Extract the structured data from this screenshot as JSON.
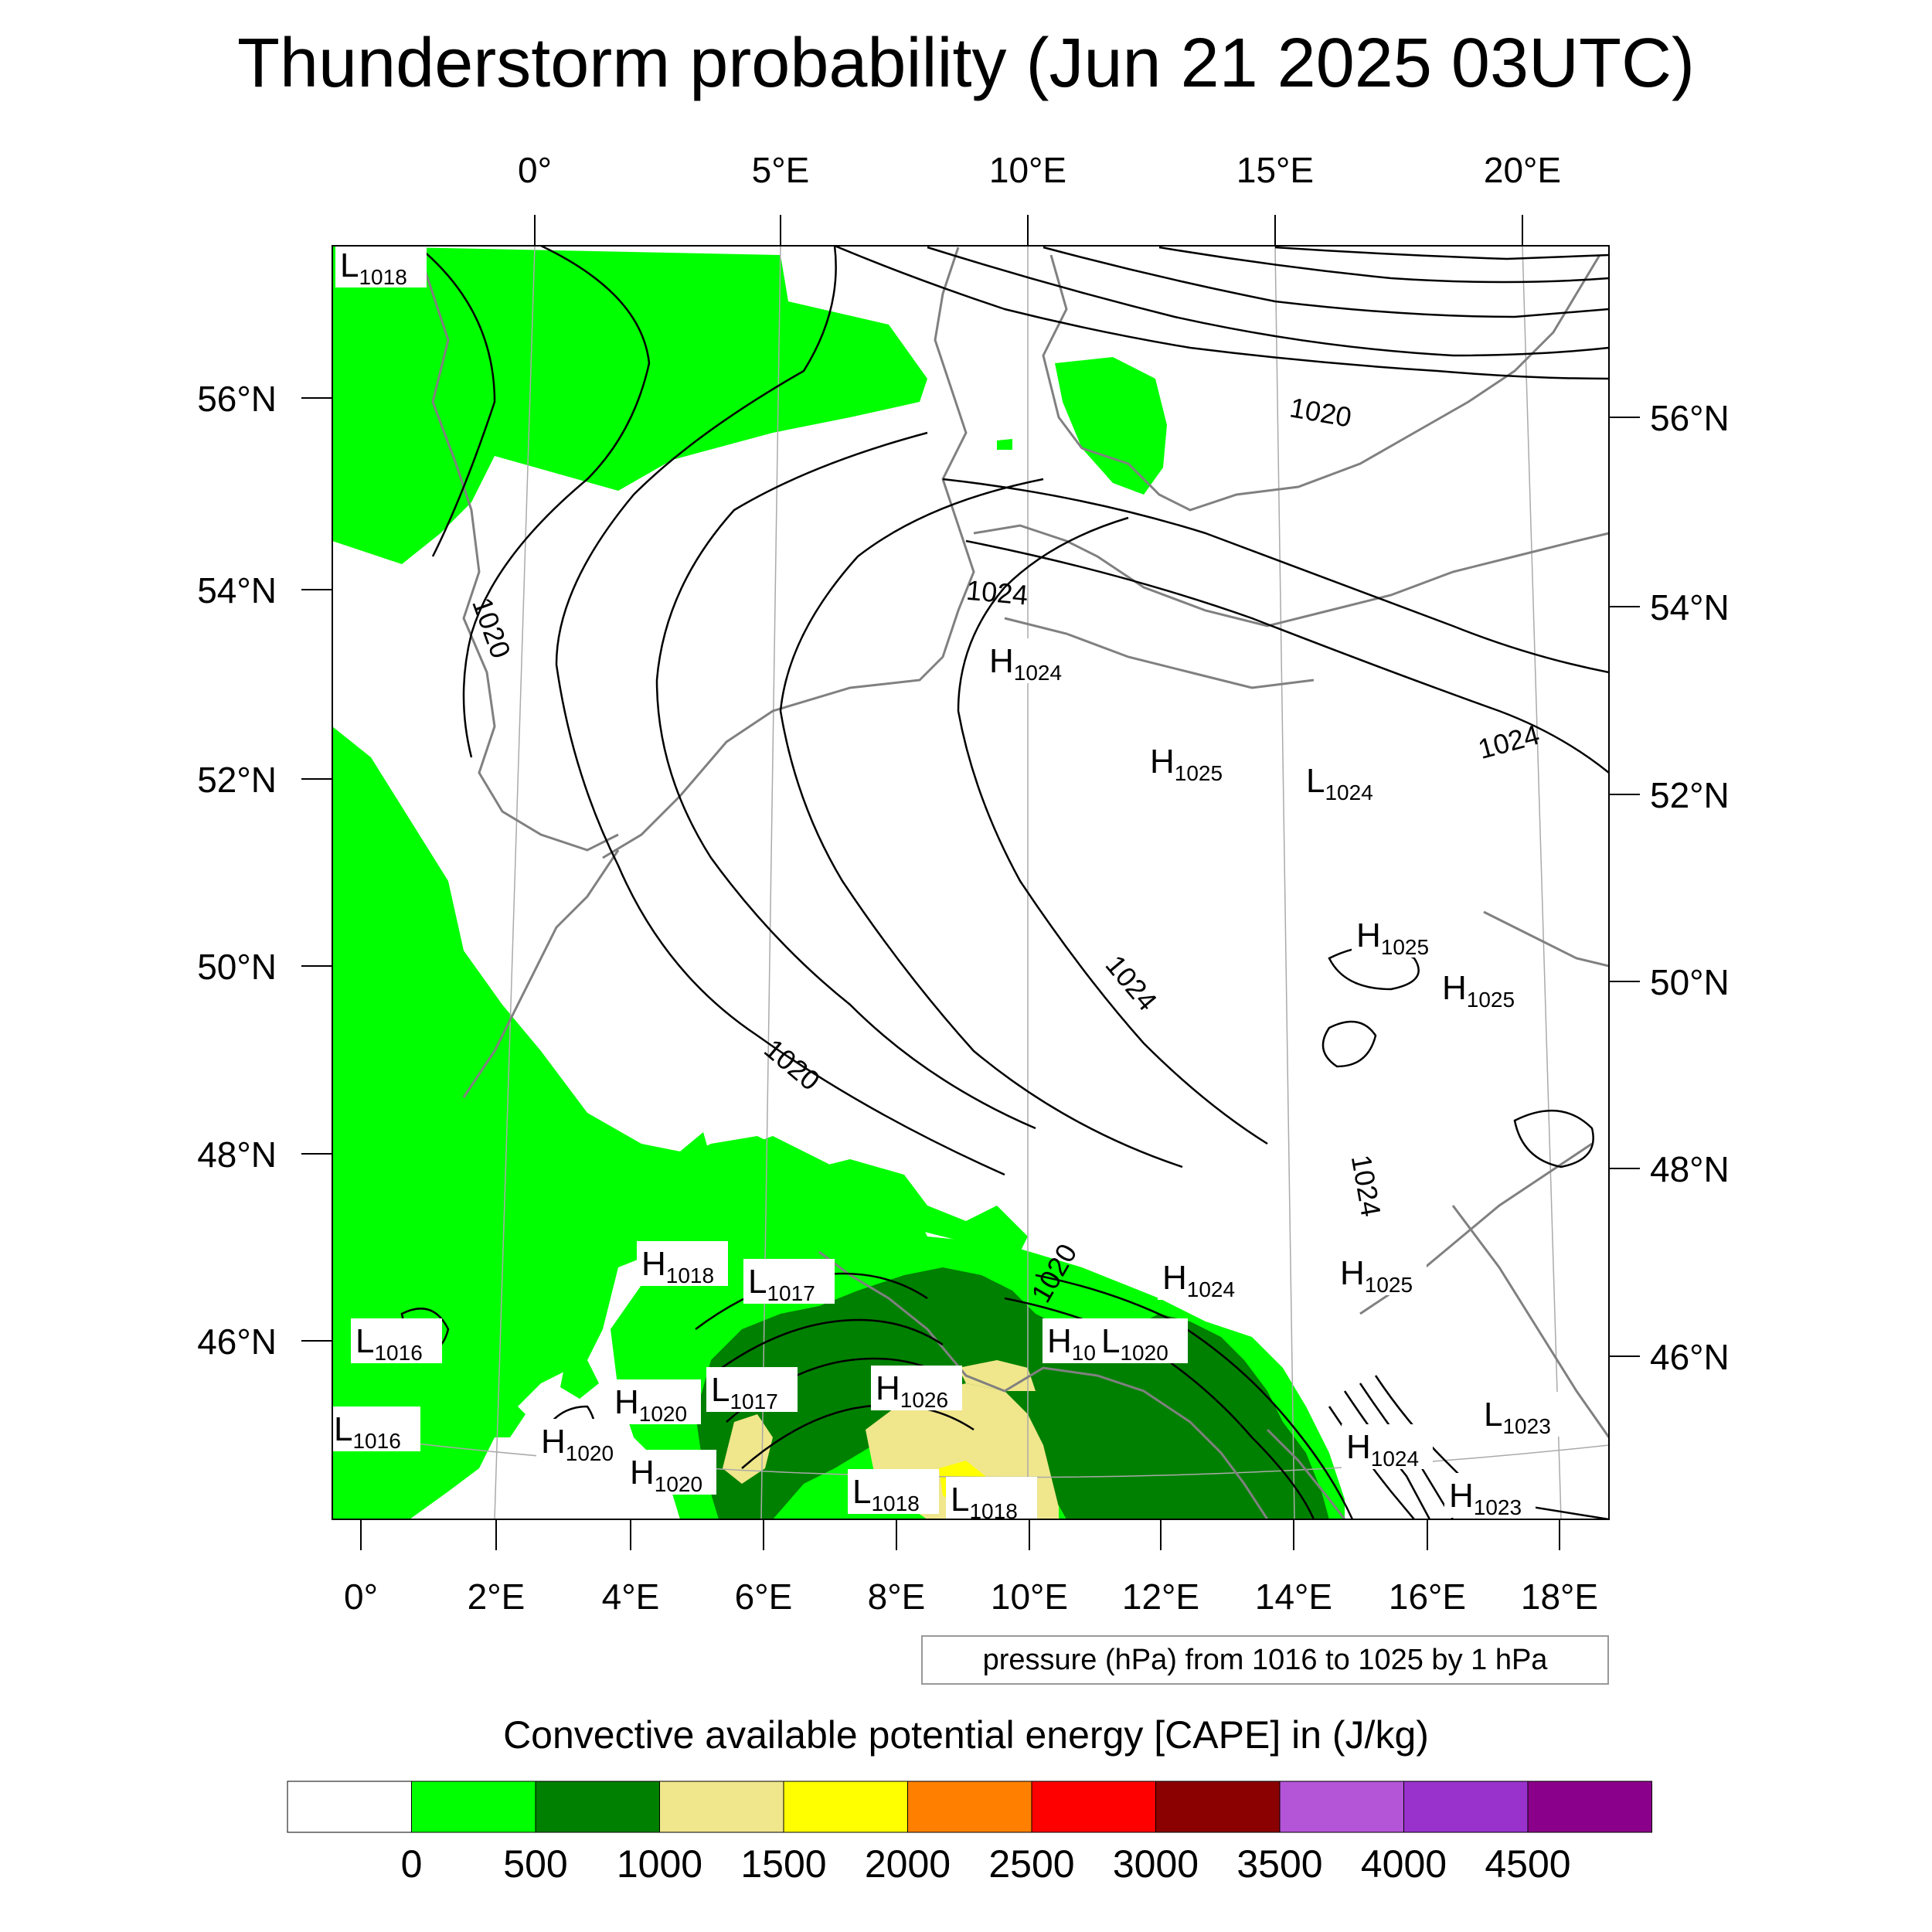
{
  "title": "Thunderstorm probability (Jun 21 2025 03UTC)",
  "top_lon_labels": [
    "0°",
    "5°E",
    "10°E",
    "15°E",
    "20°E"
  ],
  "left_lat_labels": [
    "56°N",
    "54°N",
    "52°N",
    "50°N",
    "48°N",
    "46°N"
  ],
  "right_lat_labels": [
    "56°N",
    "54°N",
    "52°N",
    "50°N",
    "48°N",
    "46°N"
  ],
  "bottom_lon_labels": [
    "0°",
    "2°E",
    "4°E",
    "6°E",
    "8°E",
    "10°E",
    "12°E",
    "14°E",
    "16°E",
    "18°E"
  ],
  "contour_labels": [
    "1020",
    "1020",
    "1024",
    "1024",
    "1020",
    "1024",
    "1024",
    "1020"
  ],
  "pressure_centers": [
    {
      "type": "L",
      "value": "1018"
    },
    {
      "type": "H",
      "value": "1024"
    },
    {
      "type": "H",
      "value": "1025"
    },
    {
      "type": "L",
      "value": "1024"
    },
    {
      "type": "H",
      "value": "1025"
    },
    {
      "type": "H",
      "value": "1025"
    },
    {
      "type": "H",
      "value": "1025"
    },
    {
      "type": "H",
      "value": "1018"
    },
    {
      "type": "L",
      "value": "1017"
    },
    {
      "type": "H",
      "value": "1024"
    },
    {
      "type": "H",
      "value": "10"
    },
    {
      "type": "L",
      "value": "1020"
    },
    {
      "type": "L",
      "value": "1016"
    },
    {
      "type": "H",
      "value": "1020"
    },
    {
      "type": "L",
      "value": "1017"
    },
    {
      "type": "H",
      "value": "1026"
    },
    {
      "type": "L",
      "value": "1016"
    },
    {
      "type": "H",
      "value": "1020"
    },
    {
      "type": "H",
      "value": "1020"
    },
    {
      "type": "L",
      "value": "1018"
    },
    {
      "type": "L",
      "value": "1018"
    },
    {
      "type": "H",
      "value": "1024"
    },
    {
      "type": "L",
      "value": "1023"
    },
    {
      "type": "H",
      "value": "1023"
    }
  ],
  "contour_info": "pressure (hPa) from 1016 to 1025 by 1 hPa",
  "colorbar": {
    "title": "Convective available potential energy [CAPE] in (J/kg)",
    "colors": [
      "#ffffff",
      "#00ff00",
      "#008000",
      "#f0e68c",
      "#ffff00",
      "#ff8000",
      "#ff0000",
      "#8b0000",
      "#b455d8",
      "#9932cc",
      "#8b008b"
    ],
    "tick_labels": [
      "0",
      "500",
      "1000",
      "1500",
      "2000",
      "2500",
      "3000",
      "3500",
      "4000",
      "4500"
    ]
  }
}
